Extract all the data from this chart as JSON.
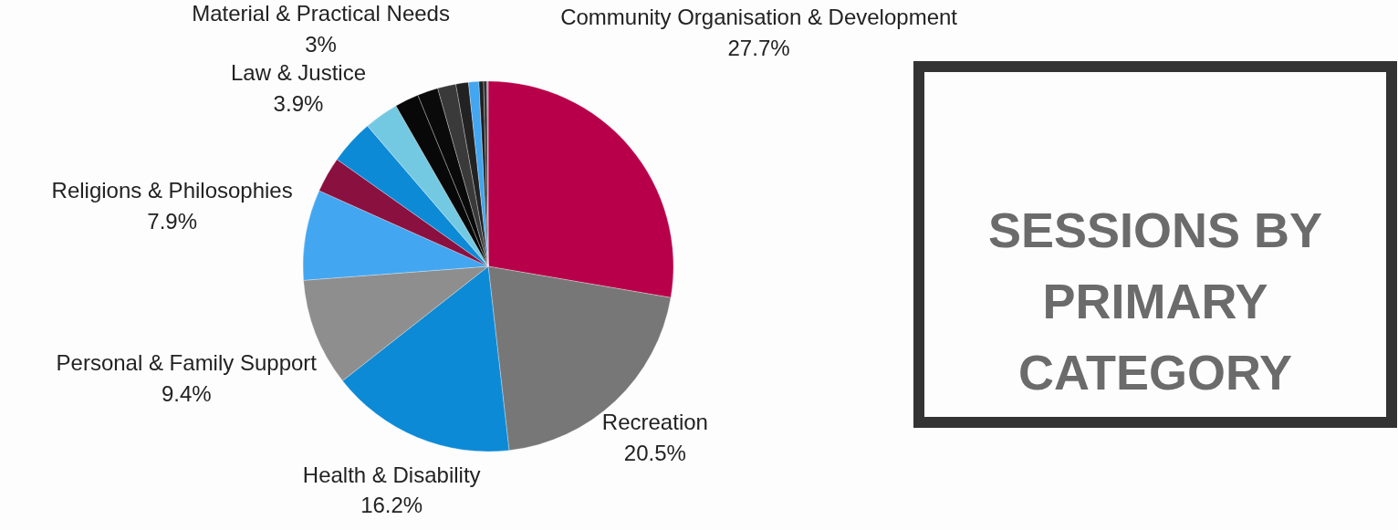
{
  "chart_data": {
    "type": "pie",
    "title": "SESSIONS BY PRIMARY CATEGORY",
    "categories": [
      "Community Organisation & Development",
      "Recreation",
      "Health & Disability",
      "Personal & Family Support",
      "Religions & Philosophies",
      null,
      "Law & Justice",
      "Material & Practical Needs",
      null,
      null,
      null,
      null,
      null,
      null,
      null,
      null
    ],
    "values": [
      27.7,
      20.5,
      16.2,
      9.4,
      7.9,
      3.1,
      3.9,
      3,
      2.1,
      1.8,
      1.6,
      1.1,
      0.9,
      0.4,
      0.3,
      0.1
    ],
    "value_labels": [
      "27.7%",
      "20.5%",
      "16.2%",
      "9.4%",
      "7.9%",
      null,
      "3.9%",
      "3%",
      null,
      null,
      null,
      null,
      null,
      null,
      null,
      null
    ],
    "colors": [
      "#b8004a",
      "#777777",
      "#0d8ad6",
      "#8e8e8e",
      "#42a6f0",
      "#8a1040",
      "#0d8ad6",
      "#74c9e2",
      "#080808",
      "#0a0a0a",
      "#3a3a3a",
      "#222222",
      "#42a6f0",
      "#202020",
      "#333333",
      "#999999"
    ]
  }
}
